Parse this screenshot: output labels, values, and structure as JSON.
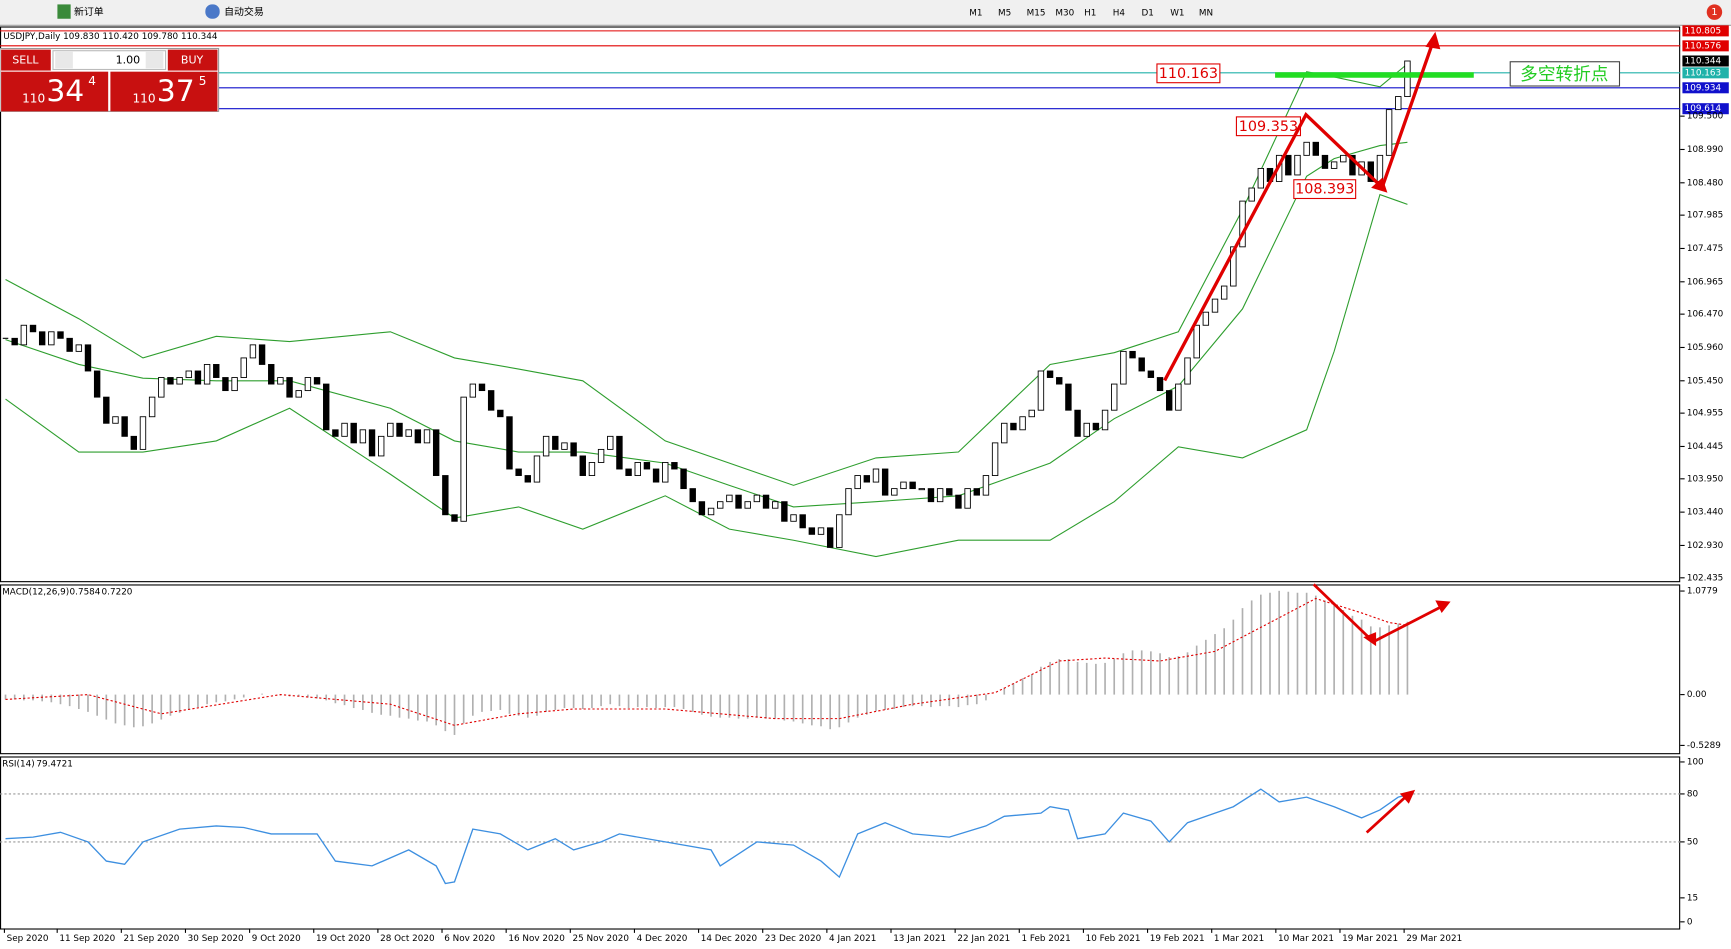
{
  "toolbar": {
    "new_order": "新订单",
    "auto_trading": "自动交易",
    "timeframes": [
      "M1",
      "M5",
      "M15",
      "M30",
      "H1",
      "H4",
      "D1",
      "W1",
      "MN"
    ],
    "badge": "1"
  },
  "trade_panel": {
    "sell": "SELL",
    "buy": "BUY",
    "lots": "1.00",
    "sell_price": {
      "big": "110",
      "pips": "34",
      "point": "4"
    },
    "buy_price": {
      "big": "110",
      "pips": "37",
      "point": "5"
    }
  },
  "chart_data": [
    {
      "type": "candlestick",
      "header": "USDJPY,Daily  109.830 110.420 109.780 110.344",
      "close": [
        106.1,
        106.0,
        106.3,
        106.2,
        106.0,
        106.2,
        106.1,
        105.9,
        106.0,
        105.6,
        105.2,
        104.8,
        104.9,
        104.6,
        104.4,
        104.9,
        105.2,
        105.5,
        105.4,
        105.5,
        105.6,
        105.4,
        105.7,
        105.5,
        105.3,
        105.5,
        105.8,
        106.0,
        105.7,
        105.4,
        105.5,
        105.2,
        105.3,
        105.5,
        105.4,
        104.7,
        104.6,
        104.8,
        104.5,
        104.7,
        104.3,
        104.6,
        104.8,
        104.6,
        104.7,
        104.5,
        104.7,
        104.0,
        103.4,
        103.3,
        105.2,
        105.4,
        105.3,
        105.0,
        104.9,
        104.1,
        104.0,
        103.9,
        104.3,
        104.6,
        104.4,
        104.5,
        104.3,
        104.0,
        104.2,
        104.4,
        104.6,
        104.1,
        104.0,
        104.2,
        104.1,
        103.9,
        104.2,
        104.1,
        103.8,
        103.6,
        103.4,
        103.5,
        103.6,
        103.7,
        103.5,
        103.6,
        103.7,
        103.5,
        103.6,
        103.3,
        103.4,
        103.2,
        103.1,
        103.2,
        102.9,
        103.4,
        103.8,
        104.0,
        103.9,
        104.1,
        103.7,
        103.8,
        103.9,
        103.8,
        103.8,
        103.6,
        103.8,
        103.7,
        103.5,
        103.8,
        103.7,
        104.0,
        104.5,
        104.8,
        104.7,
        104.9,
        105.0,
        105.6,
        105.5,
        105.4,
        105.0,
        104.6,
        104.8,
        104.7,
        105.0,
        105.4,
        105.9,
        105.8,
        105.6,
        105.5,
        105.3,
        105.0,
        105.4,
        105.8,
        106.3,
        106.5,
        106.7,
        106.9,
        107.5,
        108.2,
        108.4,
        108.7,
        108.5,
        108.9,
        108.6,
        108.9,
        109.1,
        108.9,
        108.7,
        108.8,
        108.9,
        108.6,
        108.8,
        108.5,
        108.9,
        109.6,
        109.8,
        110.344
      ],
      "bands": {
        "x": [
          0,
          8,
          15,
          23,
          31,
          42,
          49,
          56,
          63,
          72,
          79,
          86,
          95,
          104,
          114,
          121,
          128,
          135,
          142,
          145,
          150,
          153
        ],
        "upper": [
          107.0,
          106.4,
          105.8,
          106.13,
          106.05,
          106.2,
          105.8,
          105.63,
          105.45,
          104.53,
          104.19,
          103.85,
          104.27,
          104.36,
          105.7,
          105.88,
          106.2,
          108.07,
          110.18,
          110.1,
          109.95,
          110.3
        ],
        "middle": [
          106.08,
          105.7,
          105.49,
          105.45,
          105.45,
          105.03,
          104.53,
          104.36,
          104.36,
          104.19,
          103.85,
          103.52,
          103.6,
          103.69,
          104.19,
          104.87,
          105.37,
          106.55,
          108.58,
          108.85,
          109.05,
          109.1
        ],
        "lower": [
          105.17,
          104.36,
          104.36,
          104.53,
          105.03,
          104.02,
          103.35,
          103.52,
          103.18,
          103.69,
          103.18,
          103.01,
          102.76,
          103.01,
          103.01,
          103.6,
          104.44,
          104.27,
          104.7,
          105.9,
          108.3,
          108.15
        ],
        "color": "#2e9e2e"
      },
      "ylim": [
        102.435,
        110.805
      ],
      "yticks": [
        {
          "value": 109.5,
          "label": "109.500"
        },
        {
          "value": 108.99,
          "label": "108.990"
        },
        {
          "value": 108.48,
          "label": "108.480"
        },
        107.985,
        107.475,
        106.965,
        {
          "value": 106.47,
          "label": "106.470"
        },
        {
          "value": 105.96,
          "label": "105.960"
        },
        {
          "value": 105.45,
          "label": "105.450"
        },
        104.955,
        104.445,
        {
          "value": 103.95,
          "label": "103.950"
        },
        {
          "value": 103.44,
          "label": "103.440"
        },
        {
          "value": 102.93,
          "label": "102.930"
        },
        102.435
      ],
      "levels": [
        {
          "value": 110.805,
          "color": "#e00000"
        },
        {
          "value": 110.576,
          "color": "#e00000"
        },
        {
          "value": 110.163,
          "color": "#20b2aa"
        },
        {
          "value": 109.934,
          "color": "#1010cc"
        },
        {
          "value": 109.614,
          "color": "#1010cc"
        }
      ],
      "price_labels": [
        110.163,
        109.353,
        108.393
      ],
      "note": "多空转折点",
      "x_labels": [
        "Sep 2020",
        "11 Sep 2020",
        "21 Sep 2020",
        "30 Sep 2020",
        "9 Oct 2020",
        "19 Oct 2020",
        "28 Oct 2020",
        "6 Nov 2020",
        "16 Nov 2020",
        "25 Nov 2020",
        "4 Dec 2020",
        "14 Dec 2020",
        "23 Dec 2020",
        "4 Jan 2021",
        "13 Jan 2021",
        "22 Jan 2021",
        "1 Feb 2021",
        "10 Feb 2021",
        "19 Feb 2021",
        "1 Mar 2021",
        "10 Mar 2021",
        "19 Mar 2021",
        "29 Mar 2021"
      ]
    },
    {
      "type": "macd",
      "name": "MACD(12,26,9)",
      "signal_value_label": "0.7220",
      "values": [
        -0.05,
        -0.05,
        -0.06,
        -0.06,
        -0.07,
        -0.08,
        -0.1,
        -0.12,
        -0.15,
        -0.18,
        -0.22,
        -0.26,
        -0.3,
        -0.32,
        -0.34,
        -0.33,
        -0.3,
        -0.26,
        -0.22,
        -0.19,
        -0.16,
        -0.13,
        -0.1,
        -0.08,
        -0.07,
        -0.05,
        -0.03,
        0.0,
        0.01,
        0.0,
        -0.01,
        -0.02,
        -0.02,
        -0.03,
        -0.04,
        -0.06,
        -0.09,
        -0.11,
        -0.14,
        -0.16,
        -0.19,
        -0.21,
        -0.22,
        -0.24,
        -0.25,
        -0.27,
        -0.28,
        -0.32,
        -0.38,
        -0.42,
        -0.3,
        -0.22,
        -0.18,
        -0.17,
        -0.16,
        -0.2,
        -0.22,
        -0.24,
        -0.22,
        -0.18,
        -0.16,
        -0.14,
        -0.14,
        -0.15,
        -0.14,
        -0.12,
        -0.1,
        -0.12,
        -0.14,
        -0.13,
        -0.13,
        -0.14,
        -0.13,
        -0.13,
        -0.15,
        -0.18,
        -0.21,
        -0.23,
        -0.24,
        -0.24,
        -0.25,
        -0.25,
        -0.24,
        -0.25,
        -0.25,
        -0.27,
        -0.28,
        -0.3,
        -0.32,
        -0.33,
        -0.36,
        -0.34,
        -0.29,
        -0.24,
        -0.21,
        -0.17,
        -0.16,
        -0.15,
        -0.13,
        -0.12,
        -0.12,
        -0.13,
        -0.12,
        -0.12,
        -0.13,
        -0.11,
        -0.1,
        -0.06,
        0.0,
        0.07,
        0.12,
        0.17,
        0.21,
        0.29,
        0.34,
        0.37,
        0.37,
        0.34,
        0.33,
        0.32,
        0.33,
        0.37,
        0.43,
        0.46,
        0.46,
        0.45,
        0.43,
        0.39,
        0.4,
        0.44,
        0.51,
        0.57,
        0.63,
        0.69,
        0.78,
        0.9,
        0.98,
        1.04,
        1.06,
        1.08,
        1.07,
        1.06,
        1.06,
        1.03,
        0.98,
        0.93,
        0.88,
        0.82,
        0.78,
        0.71,
        0.7,
        0.72,
        0.74,
        0.7584
      ],
      "signal_x": [
        0,
        9,
        17,
        30,
        42,
        49,
        56,
        62,
        72,
        84,
        91,
        99,
        108,
        115,
        120,
        126,
        132,
        138,
        143,
        148,
        151,
        153
      ],
      "signal": [
        -0.05,
        0.0,
        -0.2,
        0.0,
        -0.1,
        -0.32,
        -0.2,
        -0.15,
        -0.15,
        -0.25,
        -0.25,
        -0.1,
        0.02,
        0.35,
        0.38,
        0.35,
        0.45,
        0.75,
        1.0,
        0.85,
        0.75,
        0.722
      ],
      "ylim": [
        -0.5289,
        1.0779
      ],
      "yticks": [
        1.0779,
        {
          "value": 0,
          "label": "0.00"
        },
        -0.5289
      ],
      "color": "#b0b0b0",
      "signal_color": "#e00000"
    },
    {
      "type": "rsi",
      "name": "RSI(14)",
      "x": [
        0,
        3,
        6,
        9,
        11,
        13,
        15,
        19,
        23,
        26,
        29,
        34,
        36,
        40,
        44,
        47,
        48,
        49,
        51,
        54,
        57,
        60,
        62,
        65,
        67,
        72,
        77,
        78,
        82,
        86,
        89,
        91,
        93,
        96,
        99,
        103,
        107,
        109,
        113,
        114,
        116,
        117,
        120,
        122,
        125,
        127,
        129,
        132,
        134,
        137,
        139,
        142,
        145,
        148,
        150,
        152,
        153
      ],
      "values": [
        52,
        53,
        56,
        50,
        38,
        36,
        50,
        58,
        60,
        59,
        55,
        55,
        38,
        35,
        45,
        35,
        24,
        25,
        58,
        55,
        45,
        52,
        45,
        50,
        55,
        50,
        45,
        35,
        50,
        48,
        38,
        28,
        55,
        62,
        55,
        53,
        60,
        66,
        68,
        72,
        70,
        52,
        55,
        68,
        63,
        50,
        62,
        68,
        72,
        83,
        75,
        78,
        72,
        65,
        70,
        78,
        79.4721
      ],
      "ylim": [
        0,
        100
      ],
      "yticks": [
        100,
        80,
        50,
        15,
        0
      ],
      "levels": [
        80,
        50
      ],
      "color": "#3d8fe0"
    }
  ]
}
